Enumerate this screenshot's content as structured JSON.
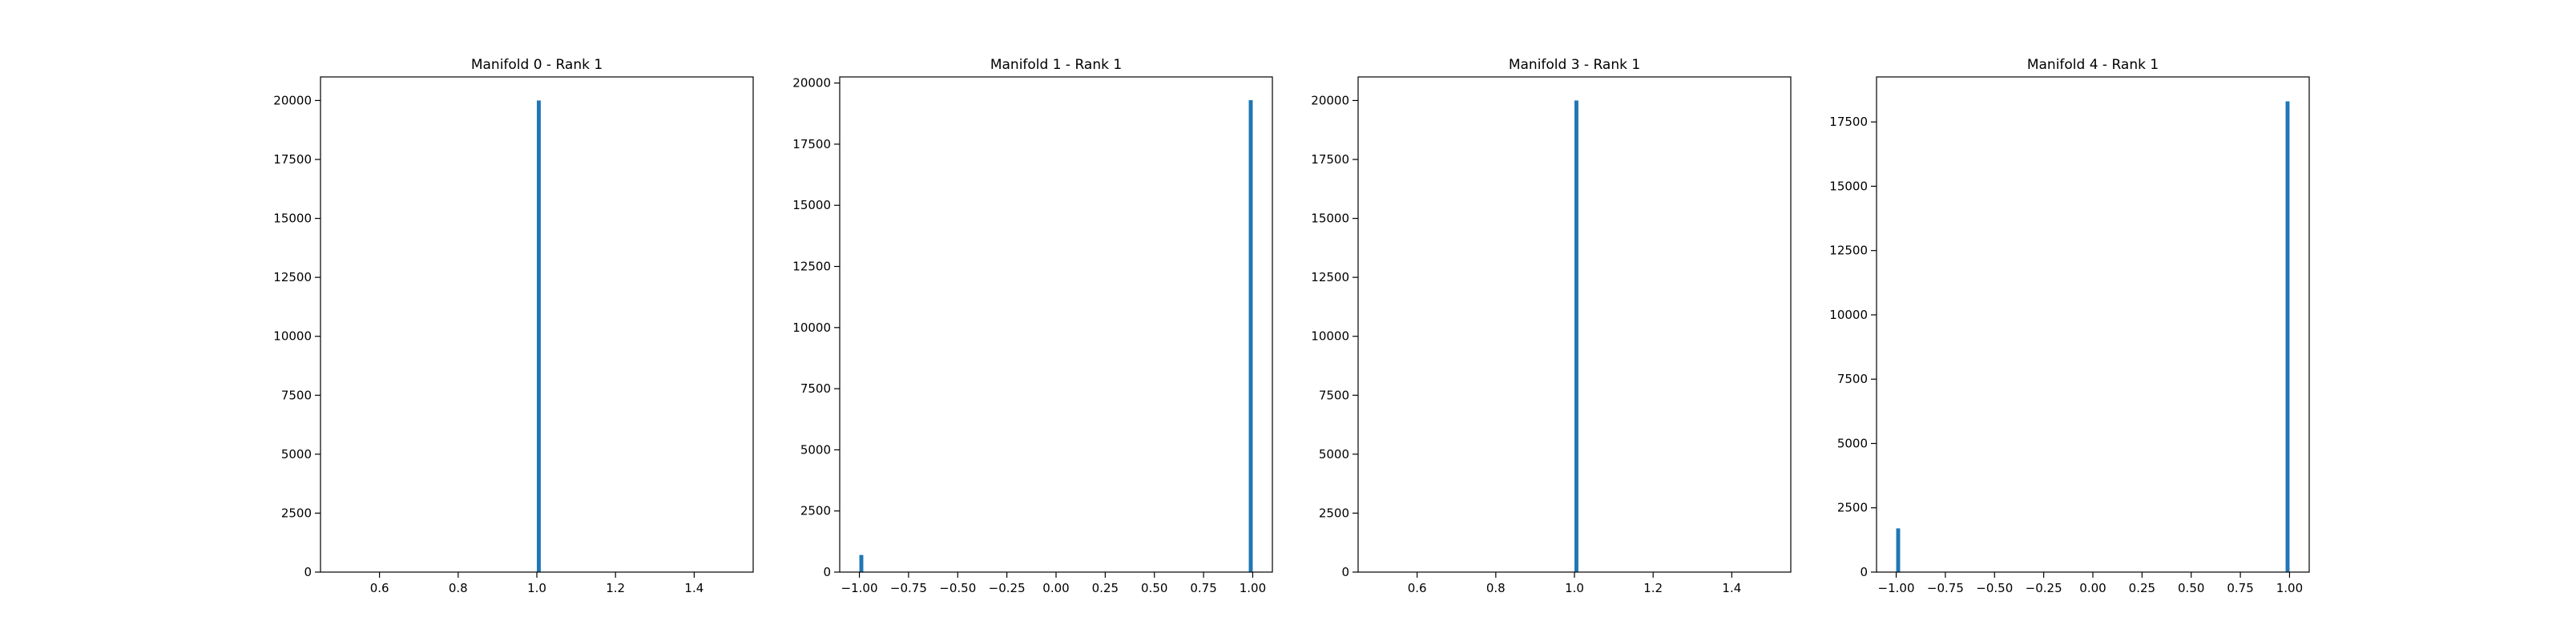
{
  "figure": {
    "background": "#ffffff",
    "bar_color": "#1f77b4"
  },
  "chart_data": [
    {
      "type": "bar",
      "title": "Manifold 0 - Rank 1",
      "xlim": [
        0.45,
        1.55
      ],
      "ylim": [
        0,
        21000
      ],
      "xticks": [
        0.6,
        0.8,
        1.0,
        1.2,
        1.4
      ],
      "xtick_labels": [
        "0.6",
        "0.8",
        "1.0",
        "1.2",
        "1.4"
      ],
      "yticks": [
        0,
        2500,
        5000,
        7500,
        10000,
        12500,
        15000,
        17500,
        20000
      ],
      "ytick_labels": [
        "0",
        "2500",
        "5000",
        "7500",
        "10000",
        "12500",
        "15000",
        "17500",
        "20000"
      ],
      "bins": [
        {
          "x0": 1.0,
          "x1": 1.01,
          "value": 20000
        }
      ]
    },
    {
      "type": "bar",
      "title": "Manifold 1 - Rank 1",
      "xlim": [
        -1.1,
        1.1
      ],
      "ylim": [
        0,
        20250
      ],
      "xticks": [
        -1.0,
        -0.75,
        -0.5,
        -0.25,
        0.0,
        0.25,
        0.5,
        0.75,
        1.0
      ],
      "xtick_labels": [
        "−1.00",
        "−0.75",
        "−0.50",
        "−0.25",
        "0.00",
        "0.25",
        "0.50",
        "0.75",
        "1.00"
      ],
      "yticks": [
        0,
        2500,
        5000,
        7500,
        10000,
        12500,
        15000,
        17500,
        20000
      ],
      "ytick_labels": [
        "0",
        "2500",
        "5000",
        "7500",
        "10000",
        "12500",
        "15000",
        "17500",
        "20000"
      ],
      "bins": [
        {
          "x0": -1.0,
          "x1": -0.98,
          "value": 700
        },
        {
          "x0": 0.98,
          "x1": 1.0,
          "value": 19300
        }
      ]
    },
    {
      "type": "bar",
      "title": "Manifold 3 - Rank 1",
      "xlim": [
        0.45,
        1.55
      ],
      "ylim": [
        0,
        21000
      ],
      "xticks": [
        0.6,
        0.8,
        1.0,
        1.2,
        1.4
      ],
      "xtick_labels": [
        "0.6",
        "0.8",
        "1.0",
        "1.2",
        "1.4"
      ],
      "yticks": [
        0,
        2500,
        5000,
        7500,
        10000,
        12500,
        15000,
        17500,
        20000
      ],
      "ytick_labels": [
        "0",
        "2500",
        "5000",
        "7500",
        "10000",
        "12500",
        "15000",
        "17500",
        "20000"
      ],
      "bins": [
        {
          "x0": 1.0,
          "x1": 1.01,
          "value": 20000
        }
      ]
    },
    {
      "type": "bar",
      "title": "Manifold 4 - Rank 1",
      "xlim": [
        -1.1,
        1.1
      ],
      "ylim": [
        0,
        19250
      ],
      "xticks": [
        -1.0,
        -0.75,
        -0.5,
        -0.25,
        0.0,
        0.25,
        0.5,
        0.75,
        1.0
      ],
      "xtick_labels": [
        "−1.00",
        "−0.75",
        "−0.50",
        "−0.25",
        "0.00",
        "0.25",
        "0.50",
        "0.75",
        "1.00"
      ],
      "yticks": [
        0,
        2500,
        5000,
        7500,
        10000,
        12500,
        15000,
        17500
      ],
      "ytick_labels": [
        "0",
        "2500",
        "5000",
        "7500",
        "10000",
        "12500",
        "15000",
        "17500"
      ],
      "bins": [
        {
          "x0": -1.0,
          "x1": -0.98,
          "value": 1700
        },
        {
          "x0": 0.98,
          "x1": 1.0,
          "value": 18300
        }
      ]
    }
  ]
}
